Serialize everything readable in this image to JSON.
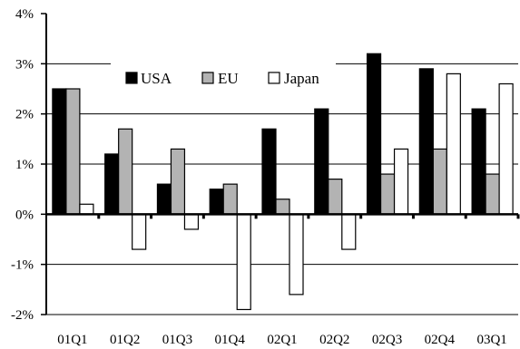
{
  "chart_data": {
    "type": "bar",
    "title": "",
    "xlabel": "",
    "ylabel": "",
    "categories": [
      "01Q1",
      "01Q2",
      "01Q3",
      "01Q4",
      "02Q1",
      "02Q2",
      "02Q3",
      "02Q4",
      "03Q1"
    ],
    "series": [
      {
        "name": "USA",
        "color": "#000000",
        "values": [
          2.5,
          1.2,
          0.6,
          0.5,
          1.7,
          2.1,
          3.2,
          2.9,
          2.1
        ]
      },
      {
        "name": "EU",
        "color": "#b3b3b3",
        "values": [
          2.5,
          1.7,
          1.3,
          0.6,
          0.3,
          0.7,
          0.8,
          1.3,
          0.8
        ]
      },
      {
        "name": "Japan",
        "color": "#ffffff",
        "values": [
          0.2,
          -0.7,
          -0.3,
          -1.9,
          -1.6,
          -0.7,
          1.3,
          2.8,
          2.6
        ]
      }
    ],
    "yticks": [
      {
        "value": 4,
        "label": "4%"
      },
      {
        "value": 3,
        "label": "3%"
      },
      {
        "value": 2,
        "label": "2%"
      },
      {
        "value": 1,
        "label": "1%"
      },
      {
        "value": 0,
        "label": "0%"
      },
      {
        "value": -1,
        "label": "-1%"
      },
      {
        "value": -2,
        "label": "-2%"
      }
    ],
    "ylim": [
      -2,
      4
    ],
    "grid": true,
    "legend_position": "top-center"
  }
}
